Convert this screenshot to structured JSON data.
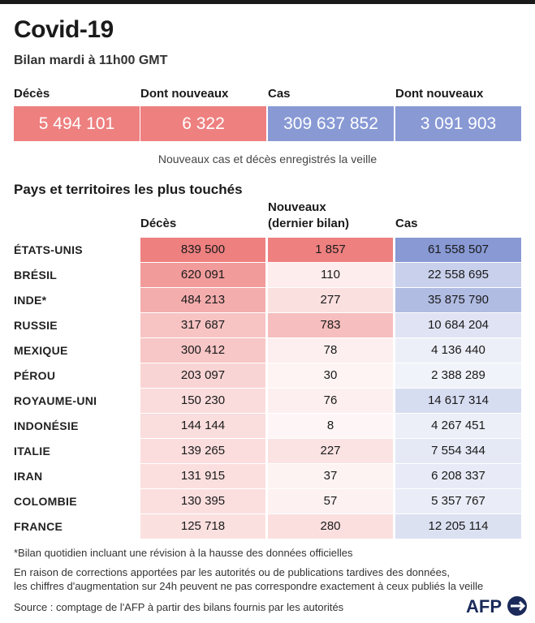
{
  "header": {
    "title": "Covid-19",
    "subtitle": "Bilan mardi à 11h00 GMT"
  },
  "summary": [
    {
      "label": "Décès",
      "value": "5 494 101",
      "color": "#ee8080"
    },
    {
      "label": "Dont nouveaux",
      "value": "6 322",
      "color": "#ee8080"
    },
    {
      "label": "Cas",
      "value": "309 637 852",
      "color": "#8899d4"
    },
    {
      "label": "Dont nouveaux",
      "value": "3 091 903",
      "color": "#8899d4"
    }
  ],
  "summary_note": "Nouveaux cas et décès enregistrés la veille",
  "table": {
    "title": "Pays et territoires les plus touchés",
    "col_deaths": "Décès",
    "col_new_line1": "Nouveaux",
    "col_new_line2": "(dernier bilan)",
    "col_cases": "Cas"
  },
  "chart_data": {
    "type": "table",
    "title": "Pays et territoires les plus touchés",
    "columns": [
      "Décès",
      "Nouveaux (dernier bilan)",
      "Cas"
    ],
    "rows": [
      {
        "country": "ÉTATS-UNIS",
        "deaths": 839500,
        "new": 1857,
        "cases": 61558507,
        "deaths_label": "839 500",
        "new_label": "1 857",
        "cases_label": "61 558 507"
      },
      {
        "country": "BRÉSIL",
        "deaths": 620091,
        "new": 110,
        "cases": 22558695,
        "deaths_label": "620 091",
        "new_label": "110",
        "cases_label": "22 558 695"
      },
      {
        "country": "INDE*",
        "deaths": 484213,
        "new": 277,
        "cases": 35875790,
        "deaths_label": "484 213",
        "new_label": "277",
        "cases_label": "35 875 790"
      },
      {
        "country": "RUSSIE",
        "deaths": 317687,
        "new": 783,
        "cases": 10684204,
        "deaths_label": "317 687",
        "new_label": "783",
        "cases_label": "10 684 204"
      },
      {
        "country": "MEXIQUE",
        "deaths": 300412,
        "new": 78,
        "cases": 4136440,
        "deaths_label": "300 412",
        "new_label": "78",
        "cases_label": "4 136 440"
      },
      {
        "country": "PÉROU",
        "deaths": 203097,
        "new": 30,
        "cases": 2388289,
        "deaths_label": "203 097",
        "new_label": "30",
        "cases_label": "2 388 289"
      },
      {
        "country": "ROYAUME-UNI",
        "deaths": 150230,
        "new": 76,
        "cases": 14617314,
        "deaths_label": "150 230",
        "new_label": "76",
        "cases_label": "14 617 314"
      },
      {
        "country": "INDONÉSIE",
        "deaths": 144144,
        "new": 8,
        "cases": 4267451,
        "deaths_label": "144 144",
        "new_label": "8",
        "cases_label": "4 267 451"
      },
      {
        "country": "ITALIE",
        "deaths": 139265,
        "new": 227,
        "cases": 7554344,
        "deaths_label": "139 265",
        "new_label": "227",
        "cases_label": "7 554 344"
      },
      {
        "country": "IRAN",
        "deaths": 131915,
        "new": 37,
        "cases": 6208337,
        "deaths_label": "131 915",
        "new_label": "37",
        "cases_label": "6 208 337"
      },
      {
        "country": "COLOMBIE",
        "deaths": 130395,
        "new": 57,
        "cases": 5357767,
        "deaths_label": "130 395",
        "new_label": "57",
        "cases_label": "5 357 767"
      },
      {
        "country": "FRANCE",
        "deaths": 125718,
        "new": 280,
        "cases": 12205114,
        "deaths_label": "125 718",
        "new_label": "280",
        "cases_label": "12 205 114"
      }
    ],
    "colors": {
      "deaths_max": "#ee8080",
      "new_max": "#ee8080",
      "cases_max": "#8899d4"
    }
  },
  "footnotes": {
    "note1": "*Bilan quotidien incluant une révision à la hausse des données officielles",
    "note2": "En raison de corrections apportées par les autorités ou de publications tardives des données,",
    "note3": "les chiffres d'augmentation sur 24h peuvent ne pas correspondre exactement à ceux publiés la veille",
    "source": "Source : comptage de l'AFP à partir des bilans fournis par les autorités"
  },
  "logo": {
    "text": "AFP",
    "icon": "afp-logo-icon"
  }
}
